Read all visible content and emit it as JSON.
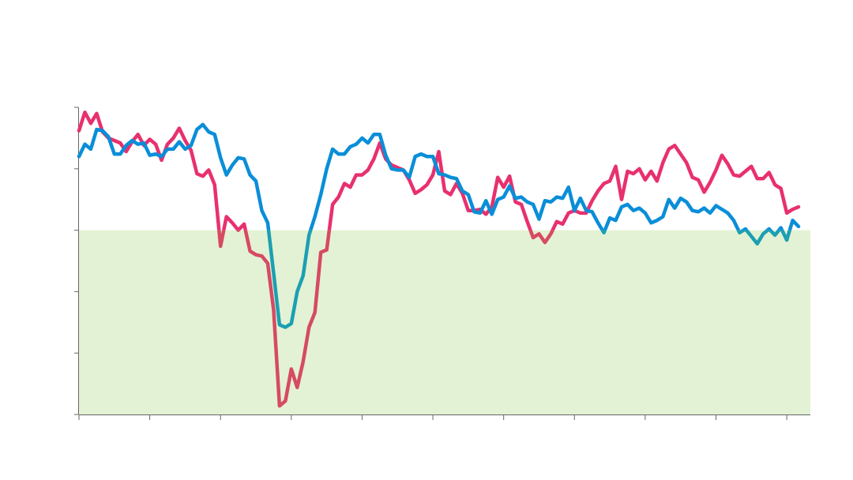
{
  "chart_data": {
    "type": "line",
    "title": "",
    "xlabel": "",
    "ylabel": "",
    "ylim": [
      30,
      55
    ],
    "xlim": [
      0,
      124
    ],
    "y_ticks": [
      30,
      35,
      40,
      45,
      50,
      55
    ],
    "x_ticks": [
      0,
      12,
      24,
      36,
      48,
      60,
      72,
      84,
      96,
      108,
      120
    ],
    "grid": false,
    "legend": "none",
    "reference_line": {
      "value": 45,
      "below_fill_color": "#e3f2d4"
    },
    "axis_color": "#666666",
    "series": [
      {
        "color_above": "#e8306f",
        "color_below": "#d64a63",
        "points": [
          [
            0,
            53.1
          ],
          [
            1,
            54.6
          ],
          [
            2,
            53.7
          ],
          [
            3,
            54.5
          ],
          [
            4,
            53.0
          ],
          [
            5,
            52.5
          ],
          [
            6,
            52.3
          ],
          [
            7,
            52.1
          ],
          [
            8,
            51.4
          ],
          [
            9,
            52.2
          ],
          [
            10,
            52.8
          ],
          [
            11,
            51.9
          ],
          [
            12,
            52.4
          ],
          [
            13,
            52.0
          ],
          [
            14,
            50.7
          ],
          [
            15,
            52.0
          ],
          [
            16,
            52.5
          ],
          [
            17,
            53.3
          ],
          [
            18,
            52.3
          ],
          [
            19,
            51.5
          ],
          [
            20,
            49.6
          ],
          [
            21,
            49.4
          ],
          [
            22,
            49.9
          ],
          [
            23,
            48.7
          ],
          [
            24,
            43.7
          ],
          [
            25,
            46.1
          ],
          [
            26,
            45.6
          ],
          [
            27,
            45.0
          ],
          [
            28,
            45.5
          ],
          [
            29,
            43.3
          ],
          [
            30,
            43.0
          ],
          [
            31,
            42.9
          ],
          [
            32,
            42.3
          ],
          [
            33,
            38.5
          ],
          [
            34,
            30.7
          ],
          [
            35,
            31.1
          ],
          [
            36,
            33.7
          ],
          [
            37,
            32.2
          ],
          [
            38,
            34.3
          ],
          [
            39,
            37.1
          ],
          [
            40,
            38.3
          ],
          [
            41,
            43.2
          ],
          [
            42,
            43.4
          ],
          [
            43,
            47.1
          ],
          [
            44,
            47.7
          ],
          [
            45,
            48.8
          ],
          [
            46,
            48.5
          ],
          [
            47,
            49.5
          ],
          [
            48,
            49.5
          ],
          [
            49,
            49.9
          ],
          [
            50,
            50.8
          ],
          [
            51,
            52.1
          ],
          [
            52,
            50.8
          ],
          [
            53,
            50.3
          ],
          [
            54,
            50.1
          ],
          [
            55,
            49.9
          ],
          [
            56,
            49.1
          ],
          [
            57,
            48.0
          ],
          [
            58,
            48.3
          ],
          [
            59,
            48.7
          ],
          [
            60,
            49.5
          ],
          [
            61,
            51.4
          ],
          [
            62,
            48.2
          ],
          [
            63,
            47.9
          ],
          [
            64,
            48.8
          ],
          [
            65,
            48.0
          ],
          [
            66,
            46.6
          ],
          [
            67,
            46.6
          ],
          [
            68,
            46.7
          ],
          [
            69,
            46.3
          ],
          [
            70,
            46.9
          ],
          [
            71,
            49.3
          ],
          [
            72,
            48.5
          ],
          [
            73,
            49.4
          ],
          [
            74,
            47.3
          ],
          [
            75,
            47.1
          ],
          [
            76,
            45.7
          ],
          [
            77,
            44.4
          ],
          [
            78,
            44.7
          ],
          [
            79,
            44.0
          ],
          [
            80,
            44.7
          ],
          [
            81,
            45.7
          ],
          [
            82,
            45.5
          ],
          [
            83,
            46.4
          ],
          [
            84,
            46.6
          ],
          [
            85,
            46.4
          ],
          [
            86,
            46.4
          ],
          [
            87,
            47.4
          ],
          [
            88,
            48.2
          ],
          [
            89,
            48.8
          ],
          [
            90,
            49.0
          ],
          [
            91,
            50.2
          ],
          [
            92,
            47.5
          ],
          [
            93,
            49.8
          ],
          [
            94,
            49.6
          ],
          [
            95,
            50.0
          ],
          [
            96,
            49.1
          ],
          [
            97,
            49.8
          ],
          [
            98,
            49.0
          ],
          [
            99,
            50.5
          ],
          [
            100,
            51.6
          ],
          [
            101,
            51.9
          ],
          [
            102,
            51.2
          ],
          [
            103,
            50.5
          ],
          [
            104,
            49.3
          ],
          [
            105,
            49.1
          ],
          [
            106,
            48.1
          ],
          [
            107,
            48.9
          ],
          [
            108,
            49.9
          ],
          [
            109,
            51.1
          ],
          [
            110,
            50.4
          ],
          [
            111,
            49.5
          ],
          [
            112,
            49.4
          ],
          [
            113,
            49.8
          ],
          [
            114,
            50.2
          ],
          [
            115,
            49.2
          ],
          [
            116,
            49.2
          ],
          [
            117,
            49.7
          ],
          [
            118,
            48.7
          ],
          [
            119,
            48.4
          ],
          [
            120,
            46.4
          ],
          [
            121,
            46.7
          ],
          [
            122,
            46.9
          ]
        ]
      },
      {
        "color_above": "#0a8ed8",
        "color_below": "#1c9fb2",
        "points": [
          [
            0,
            51.0
          ],
          [
            1,
            52.0
          ],
          [
            2,
            51.6
          ],
          [
            3,
            53.2
          ],
          [
            4,
            53.1
          ],
          [
            5,
            52.6
          ],
          [
            6,
            51.2
          ],
          [
            7,
            51.2
          ],
          [
            8,
            51.9
          ],
          [
            9,
            52.3
          ],
          [
            10,
            52.0
          ],
          [
            11,
            52.1
          ],
          [
            12,
            51.1
          ],
          [
            13,
            51.2
          ],
          [
            14,
            51.0
          ],
          [
            15,
            51.6
          ],
          [
            16,
            51.6
          ],
          [
            17,
            52.2
          ],
          [
            18,
            51.6
          ],
          [
            19,
            51.9
          ],
          [
            20,
            53.2
          ],
          [
            21,
            53.6
          ],
          [
            22,
            53.0
          ],
          [
            23,
            52.8
          ],
          [
            24,
            50.9
          ],
          [
            25,
            49.5
          ],
          [
            26,
            50.3
          ],
          [
            27,
            50.9
          ],
          [
            28,
            50.8
          ],
          [
            29,
            49.5
          ],
          [
            30,
            49.0
          ],
          [
            31,
            46.6
          ],
          [
            32,
            45.6
          ],
          [
            33,
            41.5
          ],
          [
            34,
            37.3
          ],
          [
            35,
            37.1
          ],
          [
            36,
            37.4
          ],
          [
            37,
            40.0
          ],
          [
            38,
            41.3
          ],
          [
            39,
            44.6
          ],
          [
            40,
            46.1
          ],
          [
            41,
            47.9
          ],
          [
            42,
            50.0
          ],
          [
            43,
            51.6
          ],
          [
            44,
            51.2
          ],
          [
            45,
            51.2
          ],
          [
            46,
            51.8
          ],
          [
            47,
            52.0
          ],
          [
            48,
            52.5
          ],
          [
            49,
            52.1
          ],
          [
            50,
            52.8
          ],
          [
            51,
            52.8
          ],
          [
            52,
            51.1
          ],
          [
            53,
            50.0
          ],
          [
            54,
            49.9
          ],
          [
            55,
            49.9
          ],
          [
            56,
            49.3
          ],
          [
            57,
            51.0
          ],
          [
            58,
            51.2
          ],
          [
            59,
            51.0
          ],
          [
            60,
            51.0
          ],
          [
            61,
            49.6
          ],
          [
            62,
            49.5
          ],
          [
            63,
            49.3
          ],
          [
            64,
            49.2
          ],
          [
            65,
            48.2
          ],
          [
            66,
            47.9
          ],
          [
            67,
            46.5
          ],
          [
            68,
            46.4
          ],
          [
            69,
            47.4
          ],
          [
            70,
            46.3
          ],
          [
            71,
            47.5
          ],
          [
            72,
            47.7
          ],
          [
            73,
            48.6
          ],
          [
            74,
            47.6
          ],
          [
            75,
            47.7
          ],
          [
            76,
            47.3
          ],
          [
            77,
            47.1
          ],
          [
            78,
            45.9
          ],
          [
            79,
            47.4
          ],
          [
            80,
            47.3
          ],
          [
            81,
            47.7
          ],
          [
            82,
            47.6
          ],
          [
            83,
            48.5
          ],
          [
            84,
            46.6
          ],
          [
            85,
            47.6
          ],
          [
            86,
            46.6
          ],
          [
            87,
            46.5
          ],
          [
            88,
            45.6
          ],
          [
            89,
            44.8
          ],
          [
            90,
            46.0
          ],
          [
            91,
            45.8
          ],
          [
            92,
            46.9
          ],
          [
            93,
            47.1
          ],
          [
            94,
            46.6
          ],
          [
            95,
            46.8
          ],
          [
            96,
            46.4
          ],
          [
            97,
            45.6
          ],
          [
            98,
            45.8
          ],
          [
            99,
            46.1
          ],
          [
            100,
            47.5
          ],
          [
            101,
            46.8
          ],
          [
            102,
            47.6
          ],
          [
            103,
            47.3
          ],
          [
            104,
            46.6
          ],
          [
            105,
            46.5
          ],
          [
            106,
            46.8
          ],
          [
            107,
            46.4
          ],
          [
            108,
            47.0
          ],
          [
            109,
            46.7
          ],
          [
            110,
            46.4
          ],
          [
            111,
            45.8
          ],
          [
            112,
            44.8
          ],
          [
            113,
            45.1
          ],
          [
            114,
            44.5
          ],
          [
            115,
            43.9
          ],
          [
            116,
            44.7
          ],
          [
            117,
            45.1
          ],
          [
            118,
            44.6
          ],
          [
            119,
            45.2
          ],
          [
            120,
            44.2
          ],
          [
            121,
            45.8
          ],
          [
            122,
            45.3
          ]
        ]
      }
    ]
  }
}
